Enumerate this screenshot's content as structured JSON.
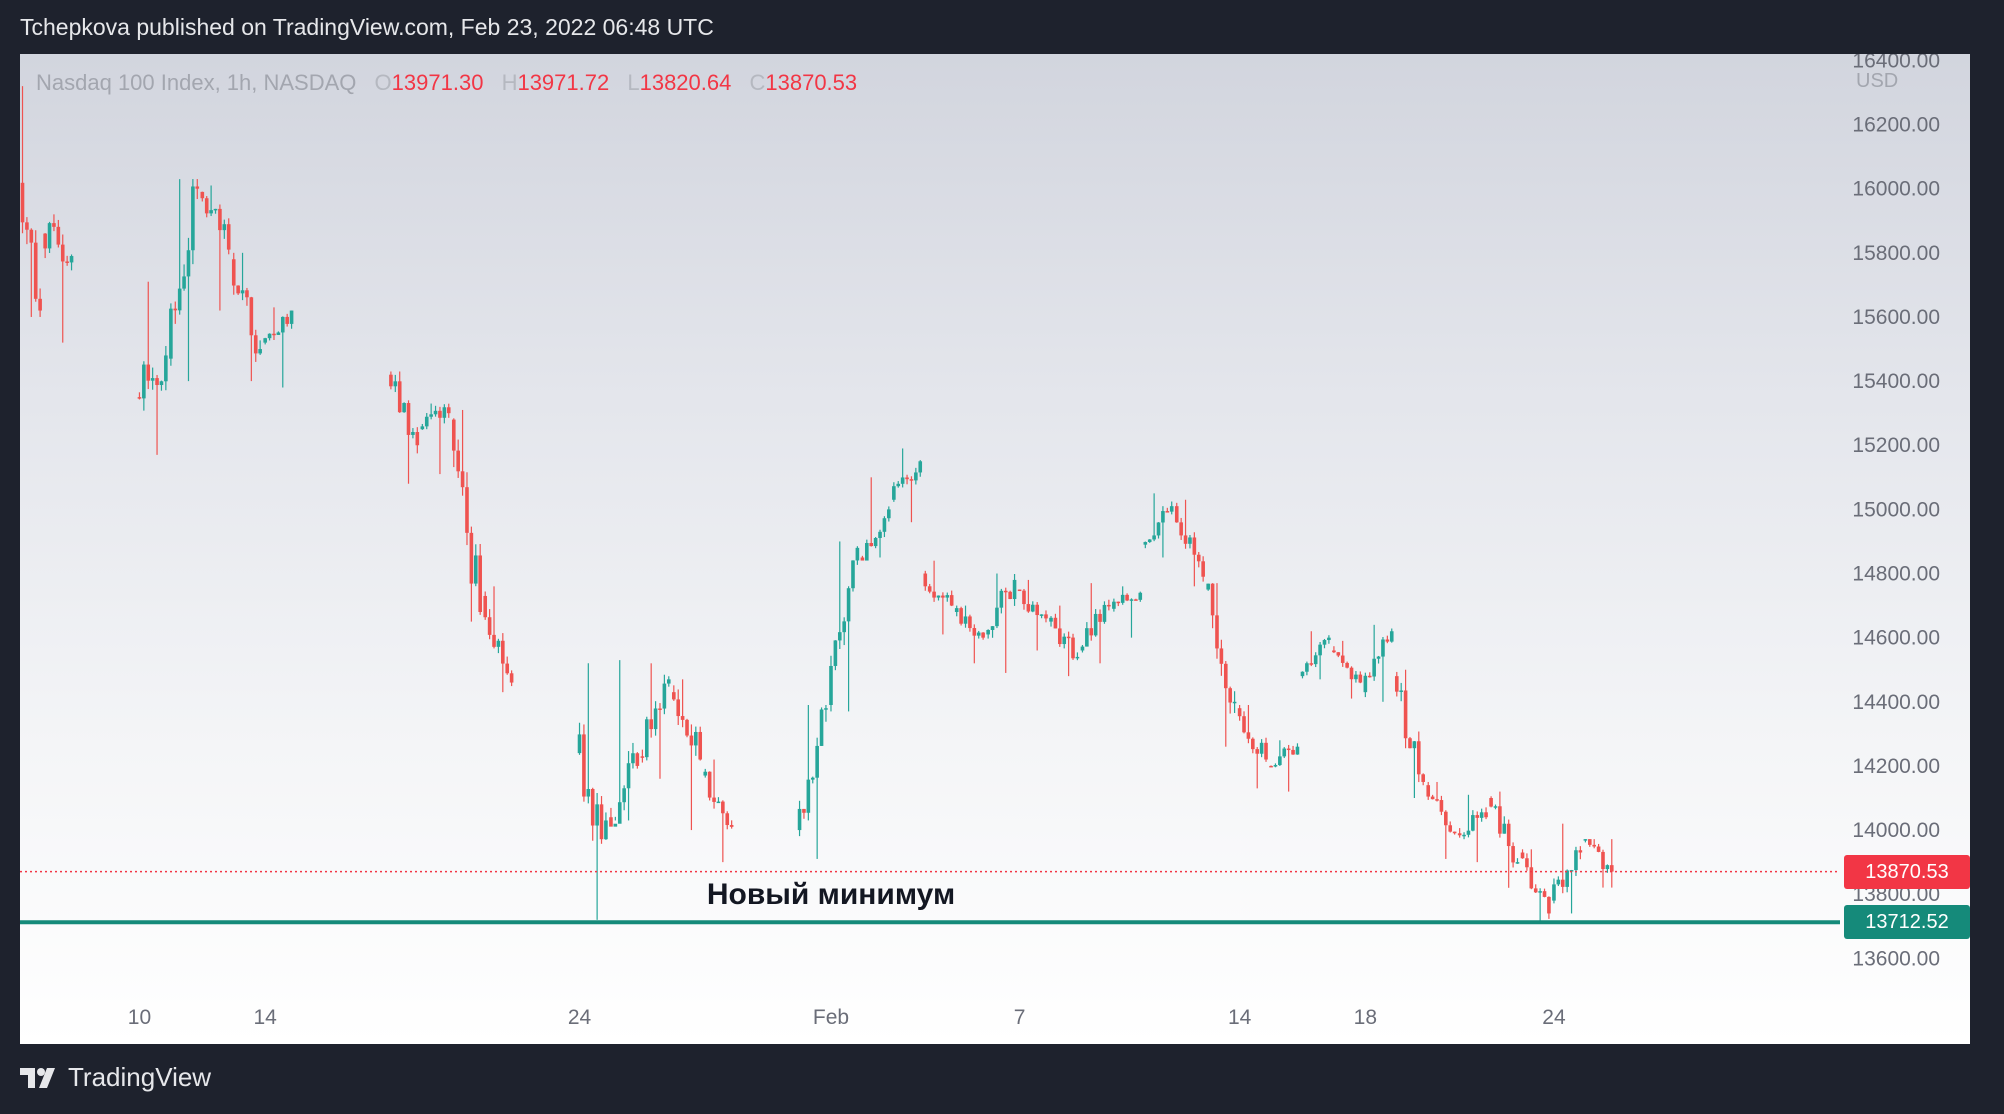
{
  "publisher_line": "Tchepkova published on TradingView.com, Feb 23, 2022 06:48 UTC",
  "legend": {
    "instrument": "Nasdaq 100 Index, 1h, NASDAQ",
    "o_label": "O",
    "o_value": "13971.30",
    "h_label": "H",
    "h_value": "13971.72",
    "l_label": "L",
    "l_value": "13820.64",
    "c_label": "C",
    "c_value": "13870.53"
  },
  "currency": "USD",
  "footer_brand": "TradingView",
  "colors": {
    "up": "#26a69a",
    "down": "#ef5350",
    "last_price": "#f23645",
    "support_line": "#158a7a",
    "axis_text": "#6a6d78"
  },
  "chart_data": {
    "type": "candlestick",
    "ylim": [
      13520,
      16420
    ],
    "y_ticks": [
      "16400.00",
      "16200.00",
      "16000.00",
      "15800.00",
      "15600.00",
      "15400.00",
      "15200.00",
      "15000.00",
      "14800.00",
      "14600.00",
      "14400.00",
      "14200.00",
      "14000.00",
      "13800.00",
      "13600.00"
    ],
    "x_ticks": [
      {
        "label": "10",
        "day": 10
      },
      {
        "label": "14",
        "day": 14
      },
      {
        "label": "24",
        "day": 24
      },
      {
        "label": "Feb",
        "day": 32
      },
      {
        "label": "7",
        "day": 38
      },
      {
        "label": "14",
        "day": 45
      },
      {
        "label": "18",
        "day": 49
      },
      {
        "label": "24",
        "day": 55
      }
    ],
    "x_range_days": [
      6.2,
      64.1
    ],
    "last_price": {
      "value": 13870.53,
      "label": "13870.53"
    },
    "support": {
      "value": 13712.52,
      "label": "13712.52"
    },
    "annotation": {
      "text": "Новый минимум",
      "price": 13800,
      "day": 32
    },
    "sessions": [
      {
        "day": 6,
        "open": 16250,
        "close": 15620,
        "high": 16320,
        "low": 15600
      },
      {
        "day": 7,
        "open": 15860,
        "close": 15790,
        "high": 15920,
        "low": 15520
      },
      {
        "day": 10,
        "open": 15350,
        "close": 15480,
        "high": 15710,
        "low": 15170
      },
      {
        "day": 11,
        "open": 15470,
        "close": 16000,
        "high": 16030,
        "low": 15400
      },
      {
        "day": 12,
        "open": 15990,
        "close": 15810,
        "high": 16010,
        "low": 15620
      },
      {
        "day": 13,
        "open": 15780,
        "close": 15500,
        "high": 15800,
        "low": 15400
      },
      {
        "day": 14,
        "open": 15520,
        "close": 15620,
        "high": 15630,
        "low": 15380
      },
      {
        "day": 18,
        "open": 15420,
        "close": 15200,
        "high": 15430,
        "low": 15080
      },
      {
        "day": 19,
        "open": 15250,
        "close": 15300,
        "high": 15330,
        "low": 15110
      },
      {
        "day": 20,
        "open": 15280,
        "close": 14680,
        "high": 15310,
        "low": 14650
      },
      {
        "day": 21,
        "open": 14730,
        "close": 14460,
        "high": 14760,
        "low": 14430
      },
      {
        "day": 24,
        "open": 14240,
        "close": 14030,
        "high": 14520,
        "low": 13720
      },
      {
        "day": 25,
        "open": 14040,
        "close": 14200,
        "high": 14530,
        "low": 14030
      },
      {
        "day": 26,
        "open": 14230,
        "close": 14470,
        "high": 14520,
        "low": 14160
      },
      {
        "day": 27,
        "open": 14430,
        "close": 14220,
        "high": 14470,
        "low": 14000
      },
      {
        "day": 28,
        "open": 14170,
        "close": 14010,
        "high": 14220,
        "low": 13900
      },
      {
        "day": 31,
        "open": 14000,
        "close": 14380,
        "high": 14390,
        "low": 13910
      },
      {
        "day": 32,
        "open": 14390,
        "close": 14880,
        "high": 14900,
        "low": 14370
      },
      {
        "day": 33,
        "open": 14850,
        "close": 15000,
        "high": 15100,
        "low": 14850
      },
      {
        "day": 34,
        "open": 15030,
        "close": 15150,
        "high": 15190,
        "low": 14960
      },
      {
        "day": 35,
        "open": 14800,
        "close": 14700,
        "high": 14840,
        "low": 14610
      },
      {
        "day": 36,
        "open": 14680,
        "close": 14600,
        "high": 14700,
        "low": 14520
      },
      {
        "day": 37,
        "open": 14610,
        "close": 14780,
        "high": 14800,
        "low": 14490
      },
      {
        "day": 38,
        "open": 14750,
        "close": 14660,
        "high": 14780,
        "low": 14560
      },
      {
        "day": 39,
        "open": 14650,
        "close": 14540,
        "high": 14700,
        "low": 14480
      },
      {
        "day": 40,
        "open": 14560,
        "close": 14700,
        "high": 14770,
        "low": 14520
      },
      {
        "day": 41,
        "open": 14690,
        "close": 14740,
        "high": 14760,
        "low": 14600
      },
      {
        "day": 42,
        "open": 14890,
        "close": 15010,
        "high": 15050,
        "low": 14850
      },
      {
        "day": 43,
        "open": 15010,
        "close": 14790,
        "high": 15030,
        "low": 14760
      },
      {
        "day": 44,
        "open": 14750,
        "close": 14400,
        "high": 14770,
        "low": 14260
      },
      {
        "day": 45,
        "open": 14380,
        "close": 14220,
        "high": 14390,
        "low": 14130
      },
      {
        "day": 46,
        "open": 14200,
        "close": 14260,
        "high": 14280,
        "low": 14120
      },
      {
        "day": 47,
        "open": 14480,
        "close": 14600,
        "high": 14620,
        "low": 14470
      },
      {
        "day": 48,
        "open": 14560,
        "close": 14460,
        "high": 14590,
        "low": 14410
      },
      {
        "day": 49,
        "open": 14430,
        "close": 14620,
        "high": 14640,
        "low": 14400
      },
      {
        "day": 50,
        "open": 14480,
        "close": 14150,
        "high": 14500,
        "low": 14100
      },
      {
        "day": 51,
        "open": 14140,
        "close": 13990,
        "high": 14150,
        "low": 13910
      },
      {
        "day": 52,
        "open": 13990,
        "close": 14040,
        "high": 14110,
        "low": 13900
      },
      {
        "day": 53,
        "open": 14100,
        "close": 13900,
        "high": 14120,
        "low": 13820
      },
      {
        "day": 54,
        "open": 13930,
        "close": 13740,
        "high": 13940,
        "low": 13710
      },
      {
        "day": 55,
        "open": 13780,
        "close": 13930,
        "high": 14020,
        "low": 13740
      },
      {
        "day": 56,
        "open": 13971.3,
        "close": 13870.53,
        "high": 13971.72,
        "low": 13820.64
      }
    ]
  }
}
